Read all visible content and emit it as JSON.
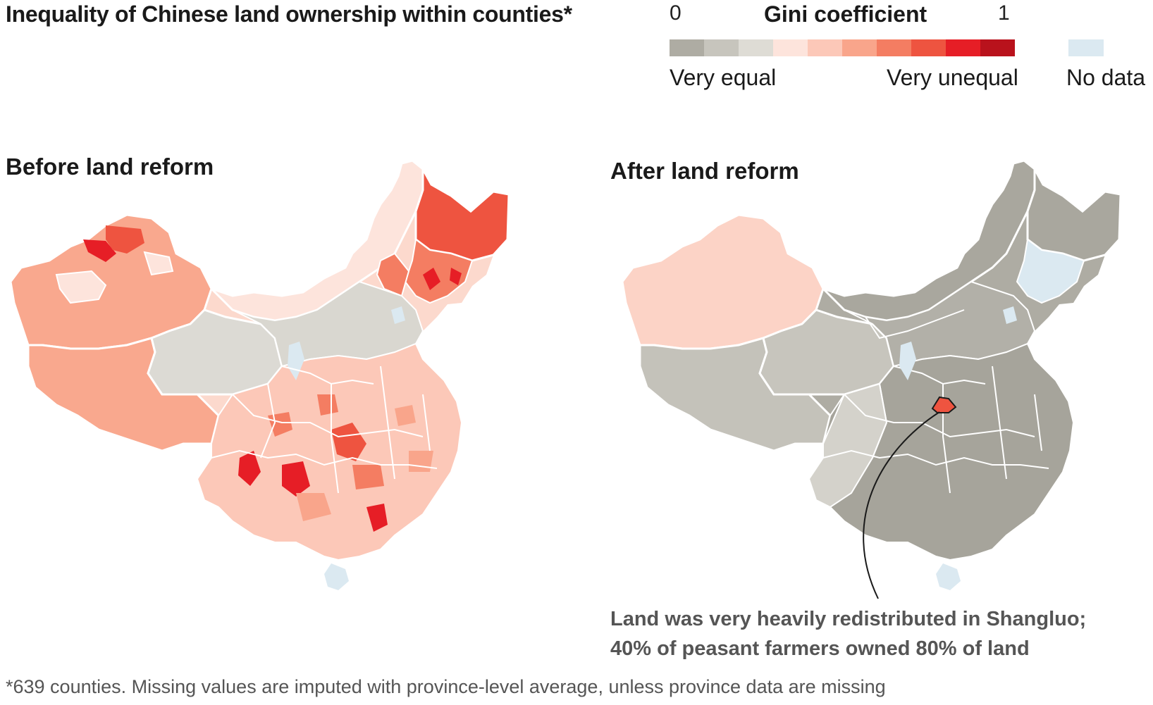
{
  "title": "Inequality of Chinese land ownership within counties*",
  "legend": {
    "title": "Gini coefficient",
    "min_label": "0",
    "max_label": "1",
    "low_label": "Very equal",
    "high_label": "Very unequal",
    "nodata_label": "No data",
    "scale_colors": [
      "#aeaca3",
      "#c7c5bd",
      "#dedcd5",
      "#fde4dc",
      "#fcc8b8",
      "#f9a58b",
      "#f47d62",
      "#ee5440",
      "#e61e26",
      "#b9121c"
    ],
    "nodata_color": "#dbe9f1"
  },
  "panels": {
    "before": {
      "title": "Before land reform"
    },
    "after": {
      "title": "After land reform"
    }
  },
  "annotation": "Land was very heavily redistributed in Shangluo; 40% of peasant farmers owned 80% of land",
  "footnote": "*639 counties. Missing values are imputed with province-level average, unless province data are missing"
}
